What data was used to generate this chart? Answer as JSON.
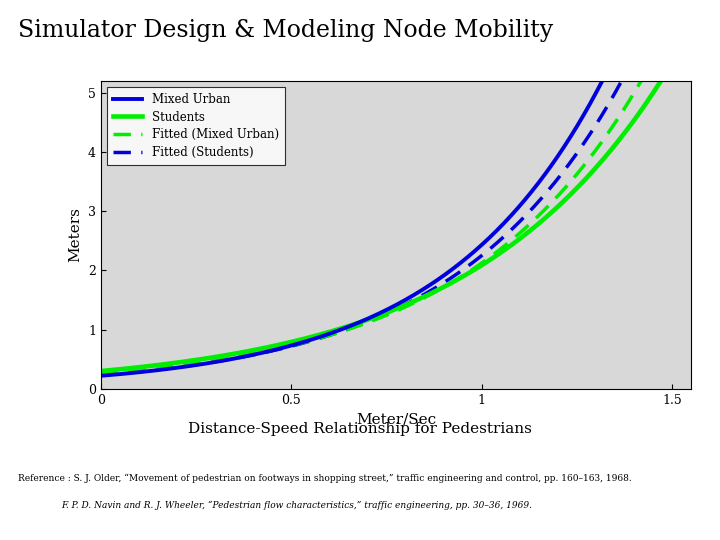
{
  "title": "Simulator Design & Modeling Node Mobility",
  "subtitle": "Distance-Speed Relationship for Pedestrians",
  "xlabel": "Meter/Sec",
  "ylabel": "Meters",
  "xlim": [
    0,
    1.55
  ],
  "ylim": [
    0,
    5.2
  ],
  "xticks": [
    0,
    0.5,
    1,
    1.5
  ],
  "yticks": [
    0,
    1,
    2,
    3,
    4,
    5
  ],
  "ref1": "Reference : S. J. Older, “Movement of pedestrian on footways in shopping street,” ",
  "ref1b": "traffic engineering and control",
  "ref1c": ", pp. 160–163, 1968.",
  "ref2a": "F. P. D. Navin and R. J. Wheeler, “Pedestrian flow characteristics,” ",
  "ref2b": "traffic engineering",
  "ref2c": ", pp. 30–36, 1969.",
  "mixed_urban_color": "#0000dd",
  "students_color": "#00ee00",
  "background_color": "#ffffff",
  "plot_bg_color": "#d8d8d8",
  "curve_mu_A": 0.22,
  "curve_mu_k": 2.35,
  "curve_st_A": 0.28,
  "curve_st_k": 2.1,
  "curve_fmu_A": 0.24,
  "curve_fmu_k": 2.2,
  "curve_fst_A": 0.26,
  "curve_fst_k": 2.15
}
